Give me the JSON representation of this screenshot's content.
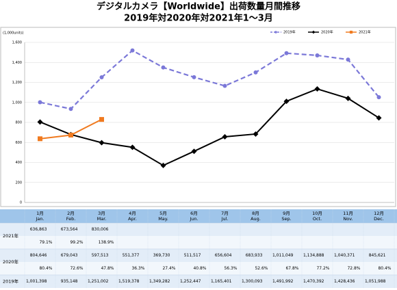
{
  "chart_data": {
    "type": "line",
    "title": "デジタルカメラ【Worldwide】出荷数量月間推移",
    "subtitle": "2019年対2020年対2021年1～3月",
    "y_unit": "(1,000units)",
    "categories": [
      "1月",
      "2月",
      "3月",
      "4月",
      "5月",
      "6月",
      "7月",
      "8月",
      "9月",
      "10月",
      "11月",
      "12月"
    ],
    "categories_en": [
      "Jan.",
      "Feb.",
      "Mar.",
      "Apr.",
      "May.",
      "Jun.",
      "Jul.",
      "Aug.",
      "Sep.",
      "Oct.",
      "Nov.",
      "Dec."
    ],
    "ylim": [
      0,
      1600
    ],
    "yticks": [
      0,
      200,
      400,
      600,
      800,
      {
        "value": 1000,
        "label": "1,000"
      },
      {
        "value": 1200,
        "label": "1,200"
      },
      {
        "value": 1400,
        "label": "1,400"
      },
      {
        "value": 1600,
        "label": "1,600"
      }
    ],
    "grid": true,
    "legend": "top-right",
    "series": [
      {
        "name": "2019年",
        "color": "#7b78d8",
        "dash": true,
        "marker": "circle",
        "values": [
          1001.398,
          935.148,
          1251.002,
          1519.378,
          1349.282,
          1252.447,
          1165.401,
          1300.093,
          1491.992,
          1470.392,
          1428.436,
          1051.988
        ],
        "value_labels": [
          "1,001,398",
          "935,148",
          "1,251,002",
          "1,519,378",
          "1,349,282",
          "1,252,447",
          "1,165,401",
          "1,300,093",
          "1,491,992",
          "1,470,392",
          "1,428,436",
          "1,051,988"
        ]
      },
      {
        "name": "2020年",
        "color": "#000000",
        "dash": false,
        "marker": "diamond",
        "values": [
          804.646,
          679.043,
          597.513,
          551.377,
          369.73,
          511.517,
          656.604,
          683.933,
          1011.049,
          1134.888,
          1040.371,
          845.621
        ],
        "value_labels": [
          "804,646",
          "679,043",
          "597,513",
          "551,377",
          "369,730",
          "511,517",
          "656,604",
          "683,933",
          "1,011,049",
          "1,134,888",
          "1,040,371",
          "845,621"
        ],
        "ratios": [
          "80.4%",
          "72.6%",
          "47.8%",
          "36.3%",
          "27.4%",
          "40.8%",
          "56.3%",
          "52.6%",
          "67.8%",
          "77.2%",
          "72.8%",
          "80.4%"
        ]
      },
      {
        "name": "2021年",
        "color": "#f07a1f",
        "dash": false,
        "marker": "square",
        "values": [
          636.863,
          673.564,
          830.006,
          null,
          null,
          null,
          null,
          null,
          null,
          null,
          null,
          null
        ],
        "value_labels": [
          "636,863",
          "673,564",
          "830,006",
          null,
          null,
          null,
          null,
          null,
          null,
          null,
          null,
          null
        ],
        "ratios": [
          "79.1%",
          "99.2%",
          "138.9%",
          null,
          null,
          null,
          null,
          null,
          null,
          null,
          null,
          null
        ]
      }
    ]
  }
}
